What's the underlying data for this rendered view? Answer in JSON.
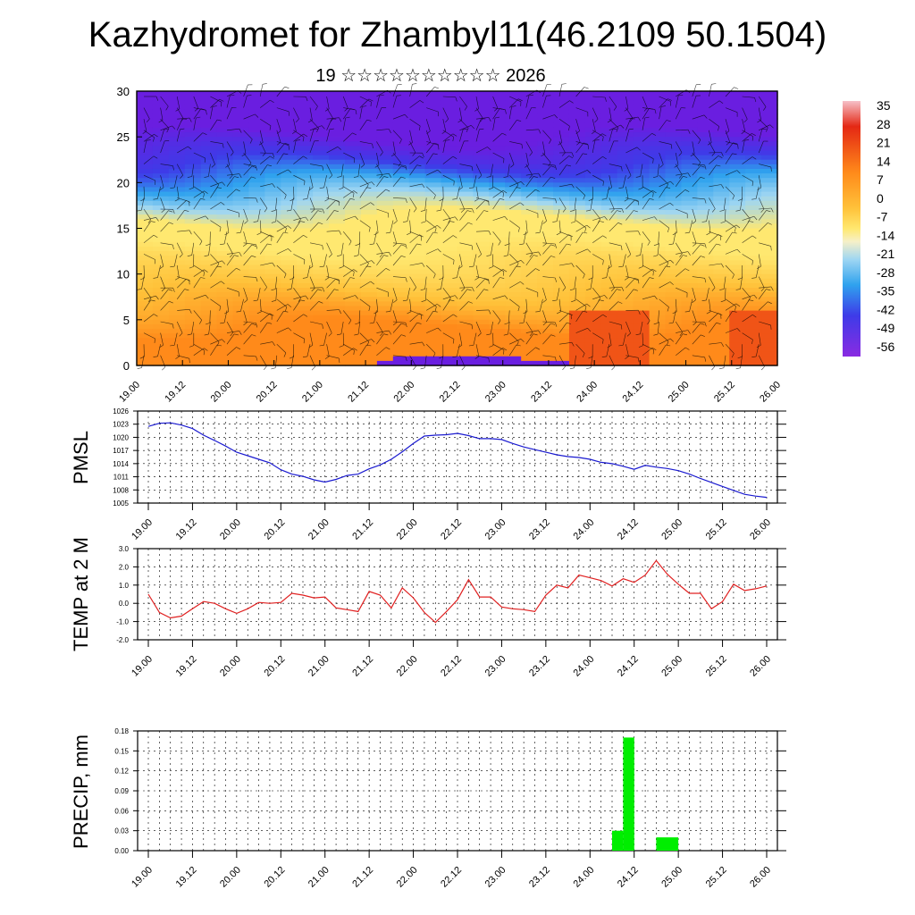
{
  "title": "Kazhydromet for Zhambyl11(46.2109 50.1504)",
  "subtitle": "19 ☆☆☆☆☆☆☆☆☆☆ 2026",
  "chart_data": [
    {
      "type": "heatmap",
      "ylim": [
        0,
        30
      ],
      "y_ticks": [
        "0",
        "5",
        "10",
        "15",
        "20",
        "25",
        "30"
      ],
      "x_ticks": [
        "19.00",
        "19.12",
        "20.00",
        "20.12",
        "21.00",
        "21.12",
        "22.00",
        "22.12",
        "23.00",
        "23.12",
        "24.00",
        "24.12",
        "25.00",
        "25.12",
        "26.00"
      ],
      "colorbar_labels": [
        "35",
        "28",
        "21",
        "14",
        "7",
        "0",
        "-7",
        "-14",
        "-21",
        "-28",
        "-35",
        "-42",
        "-49",
        "-56"
      ],
      "colors": {
        "low": "#6a1ee0",
        "mid": "#ffe870",
        "high": "#e42814",
        "bands": [
          "#6a1ee0",
          "#3e3be8",
          "#2fa2ee",
          "#9fd6f2",
          "#ffe870",
          "#ffc23a",
          "#ff8a1a",
          "#e42814"
        ]
      },
      "overlay": "wind barbs"
    },
    {
      "type": "line",
      "ylabel": "PMSL",
      "ylim": [
        1005,
        1026
      ],
      "y_ticks": [
        "1005",
        "1008",
        "1011",
        "1014",
        "1017",
        "1020",
        "1023",
        "1026"
      ],
      "x_ticks": [
        "19.00",
        "19.12",
        "20.00",
        "20.12",
        "21.00",
        "21.12",
        "22.00",
        "22.12",
        "23.00",
        "23.12",
        "24.00",
        "24.12",
        "25.00",
        "25.12",
        "26.00"
      ],
      "x": [
        0,
        3,
        6,
        9,
        12,
        15,
        18,
        21,
        24,
        27,
        30,
        33,
        36,
        39,
        42,
        45,
        48,
        51,
        54,
        57,
        60,
        63,
        66,
        69,
        72,
        75,
        78,
        81,
        84,
        87,
        90,
        93,
        96,
        99,
        102,
        105,
        108,
        111,
        114,
        117,
        120,
        123,
        126,
        129,
        132,
        135,
        138,
        141,
        144,
        147,
        150,
        153,
        156,
        159,
        162,
        165,
        168
      ],
      "series": [
        {
          "color": "#1a1ad0",
          "values": [
            1022.5,
            1023.2,
            1023.3,
            1022.8,
            1022.0,
            1020.5,
            1019.3,
            1018.0,
            1016.6,
            1015.8,
            1015.0,
            1014.2,
            1012.6,
            1011.6,
            1011.1,
            1010.3,
            1009.8,
            1010.4,
            1011.3,
            1011.6,
            1012.8,
            1013.7,
            1015.0,
            1016.7,
            1018.6,
            1020.3,
            1020.5,
            1020.6,
            1020.9,
            1020.4,
            1019.7,
            1019.7,
            1019.5,
            1018.6,
            1017.8,
            1017.2,
            1016.6,
            1016.0,
            1015.6,
            1015.4,
            1015.0,
            1014.3,
            1014.0,
            1013.4,
            1012.7,
            1013.6,
            1013.2,
            1012.9,
            1012.4,
            1011.6,
            1010.6,
            1009.7,
            1008.8,
            1007.9,
            1007.0,
            1006.6,
            1006.3
          ]
        }
      ]
    },
    {
      "type": "line",
      "ylabel": "TEMP at 2 M",
      "ylim": [
        -2.0,
        3.0
      ],
      "y_ticks": [
        "-2.0",
        "-1.0",
        "0.0",
        "1.0",
        "2.0",
        "3.0"
      ],
      "x_ticks": [
        "19.00",
        "19.12",
        "20.00",
        "20.12",
        "21.00",
        "21.12",
        "22.00",
        "22.12",
        "23.00",
        "23.12",
        "24.00",
        "24.12",
        "25.00",
        "25.12",
        "26.00"
      ],
      "x": [
        0,
        3,
        6,
        9,
        12,
        15,
        18,
        21,
        24,
        27,
        30,
        33,
        36,
        39,
        42,
        45,
        48,
        51,
        54,
        57,
        60,
        63,
        66,
        69,
        72,
        75,
        78,
        81,
        84,
        87,
        90,
        93,
        96,
        99,
        102,
        105,
        108,
        111,
        114,
        117,
        120,
        123,
        126,
        129,
        132,
        135,
        138,
        141,
        144,
        147,
        150,
        153,
        156,
        159,
        162,
        165,
        168
      ],
      "series": [
        {
          "color": "#e02020",
          "values": [
            0.5,
            -0.5,
            -0.8,
            -0.7,
            -0.3,
            0.1,
            0.0,
            -0.3,
            -0.55,
            -0.3,
            0.05,
            0.0,
            0.05,
            0.55,
            0.45,
            0.3,
            0.35,
            -0.25,
            -0.35,
            -0.45,
            0.65,
            0.45,
            -0.25,
            0.85,
            0.3,
            -0.5,
            -1.05,
            -0.45,
            0.2,
            1.3,
            0.35,
            0.35,
            -0.2,
            -0.3,
            -0.35,
            -0.45,
            0.45,
            1.0,
            0.85,
            1.55,
            1.4,
            1.25,
            0.95,
            1.35,
            1.15,
            1.55,
            2.35,
            1.6,
            1.05,
            0.55,
            0.55,
            -0.3,
            0.1,
            1.05,
            0.7,
            0.8,
            0.95
          ]
        }
      ]
    },
    {
      "type": "bar",
      "ylabel": "PRECIP, mm",
      "ylim": [
        0.0,
        0.18
      ],
      "y_ticks": [
        "0.00",
        "0.03",
        "0.06",
        "0.09",
        "0.12",
        "0.15",
        "0.18"
      ],
      "x_ticks": [
        "19.00",
        "19.12",
        "20.00",
        "20.12",
        "21.00",
        "21.12",
        "22.00",
        "22.12",
        "23.00",
        "23.12",
        "24.00",
        "24.12",
        "25.00",
        "25.12",
        "26.00"
      ],
      "bars": [
        {
          "x_start": 126,
          "x_end": 129,
          "value": 0.03
        },
        {
          "x_start": 129,
          "x_end": 132,
          "value": 0.17
        },
        {
          "x_start": 138,
          "x_end": 144,
          "value": 0.02
        }
      ],
      "color": "#00ee00"
    }
  ]
}
